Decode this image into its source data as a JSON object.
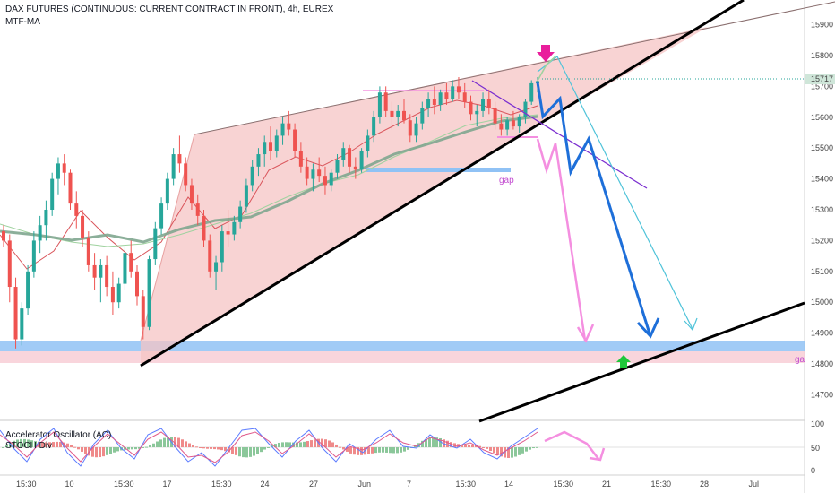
{
  "header": {
    "title": "DAX FUTURES (CONTINUOUS: CURRENT CONTRACT IN FRONT), 4h, EUREX",
    "indicator": "MTF-MA",
    "osc_title": "Accelerator Oscillator (AC)",
    "stoch_title": "STOCH Div"
  },
  "price_badge": "15717",
  "annotations": {
    "gap_label": "gap",
    "gap_label_right": "ga"
  },
  "colors": {
    "bull": "#26a69a",
    "bear": "#ef5350",
    "wedge_fill": "#f6c4c4",
    "support_band": "#90c2f5",
    "blue_path": "#1e6fd9",
    "pink_path": "#f48fe0",
    "teal_path": "#4fc3d9",
    "purple_line": "#7b2fd0",
    "ma_main": "#7fa68f",
    "ma_fast": "#d9545a",
    "ma_alt": "#9fd29f",
    "marker_top": "#e91e9c",
    "marker_bottom": "#1ec73a"
  },
  "chart_data": {
    "type": "candlestick",
    "x_tick_labels": [
      "15:30",
      "10",
      "15:30",
      "17",
      "15:30",
      "24",
      "27",
      "Jun",
      "7",
      "15:30",
      "14",
      "15:30",
      "21",
      "15:30",
      "28",
      "Jul"
    ],
    "y_tick_labels": [
      "15900",
      "15800",
      "15700",
      "15600",
      "15500",
      "15400",
      "15300",
      "15200",
      "15100",
      "15000",
      "14900",
      "14800",
      "14700"
    ],
    "ylim": [
      14620,
      15980
    ],
    "last_price": 15717,
    "ohlc": [
      [
        15230,
        15250,
        15180,
        15200
      ],
      [
        15200,
        15220,
        15000,
        15050
      ],
      [
        15050,
        15080,
        14850,
        14880
      ],
      [
        14880,
        15000,
        14860,
        14980
      ],
      [
        14980,
        15120,
        14960,
        15100
      ],
      [
        15100,
        15230,
        15080,
        15200
      ],
      [
        15200,
        15280,
        15160,
        15250
      ],
      [
        15250,
        15330,
        15200,
        15300
      ],
      [
        15300,
        15420,
        15280,
        15400
      ],
      [
        15400,
        15470,
        15350,
        15450
      ],
      [
        15450,
        15480,
        15380,
        15420
      ],
      [
        15420,
        15430,
        15300,
        15320
      ],
      [
        15320,
        15360,
        15240,
        15280
      ],
      [
        15280,
        15300,
        15180,
        15210
      ],
      [
        15210,
        15230,
        15100,
        15120
      ],
      [
        15120,
        15160,
        15040,
        15080
      ],
      [
        15080,
        15140,
        15000,
        15120
      ],
      [
        15120,
        15150,
        15020,
        15050
      ],
      [
        15050,
        15100,
        14960,
        15000
      ],
      [
        15000,
        15080,
        14980,
        15060
      ],
      [
        15060,
        15180,
        15040,
        15160
      ],
      [
        15160,
        15200,
        15080,
        15100
      ],
      [
        15100,
        15120,
        14990,
        15020
      ],
      [
        15020,
        15040,
        14880,
        14920
      ],
      [
        14920,
        15150,
        14910,
        15140
      ],
      [
        15140,
        15260,
        15120,
        15240
      ],
      [
        15240,
        15340,
        15220,
        15320
      ],
      [
        15320,
        15420,
        15300,
        15400
      ],
      [
        15400,
        15500,
        15380,
        15480
      ],
      [
        15480,
        15540,
        15420,
        15450
      ],
      [
        15450,
        15470,
        15360,
        15380
      ],
      [
        15380,
        15400,
        15300,
        15320
      ],
      [
        15320,
        15350,
        15250,
        15280
      ],
      [
        15280,
        15300,
        15180,
        15200
      ],
      [
        15200,
        15220,
        15080,
        15100
      ],
      [
        15100,
        15150,
        15040,
        15130
      ],
      [
        15130,
        15250,
        15100,
        15230
      ],
      [
        15230,
        15300,
        15180,
        15220
      ],
      [
        15220,
        15280,
        15200,
        15260
      ],
      [
        15260,
        15330,
        15240,
        15310
      ],
      [
        15310,
        15400,
        15290,
        15380
      ],
      [
        15380,
        15460,
        15360,
        15440
      ],
      [
        15440,
        15500,
        15410,
        15480
      ],
      [
        15480,
        15540,
        15440,
        15520
      ],
      [
        15520,
        15570,
        15460,
        15490
      ],
      [
        15490,
        15560,
        15470,
        15540
      ],
      [
        15540,
        15600,
        15510,
        15580
      ],
      [
        15580,
        15620,
        15540,
        15560
      ],
      [
        15560,
        15580,
        15470,
        15490
      ],
      [
        15490,
        15520,
        15420,
        15440
      ],
      [
        15440,
        15470,
        15380,
        15400
      ],
      [
        15400,
        15450,
        15360,
        15430
      ],
      [
        15430,
        15470,
        15390,
        15410
      ],
      [
        15410,
        15440,
        15350,
        15380
      ],
      [
        15380,
        15430,
        15360,
        15420
      ],
      [
        15420,
        15480,
        15400,
        15460
      ],
      [
        15460,
        15520,
        15440,
        15500
      ],
      [
        15500,
        15510,
        15420,
        15440
      ],
      [
        15440,
        15470,
        15400,
        15430
      ],
      [
        15430,
        15500,
        15420,
        15490
      ],
      [
        15490,
        15560,
        15470,
        15540
      ],
      [
        15540,
        15620,
        15520,
        15600
      ],
      [
        15600,
        15700,
        15580,
        15680
      ],
      [
        15680,
        15700,
        15600,
        15620
      ],
      [
        15620,
        15650,
        15560,
        15600
      ],
      [
        15600,
        15640,
        15570,
        15620
      ],
      [
        15620,
        15660,
        15580,
        15590
      ],
      [
        15590,
        15610,
        15520,
        15540
      ],
      [
        15540,
        15600,
        15520,
        15580
      ],
      [
        15580,
        15650,
        15560,
        15630
      ],
      [
        15630,
        15680,
        15600,
        15660
      ],
      [
        15660,
        15700,
        15610,
        15640
      ],
      [
        15640,
        15690,
        15620,
        15680
      ],
      [
        15680,
        15710,
        15640,
        15660
      ],
      [
        15660,
        15720,
        15650,
        15700
      ],
      [
        15700,
        15730,
        15660,
        15680
      ],
      [
        15680,
        15710,
        15630,
        15650
      ],
      [
        15650,
        15670,
        15590,
        15610
      ],
      [
        15610,
        15640,
        15570,
        15620
      ],
      [
        15620,
        15680,
        15600,
        15660
      ],
      [
        15660,
        15690,
        15610,
        15630
      ],
      [
        15630,
        15650,
        15560,
        15580
      ],
      [
        15580,
        15610,
        15540,
        15560
      ],
      [
        15560,
        15600,
        15540,
        15590
      ],
      [
        15590,
        15620,
        15560,
        15570
      ],
      [
        15570,
        15610,
        15550,
        15600
      ],
      [
        15600,
        15660,
        15580,
        15650
      ],
      [
        15650,
        15720,
        15640,
        15710
      ],
      [
        15710,
        15730,
        15680,
        15717
      ]
    ]
  }
}
